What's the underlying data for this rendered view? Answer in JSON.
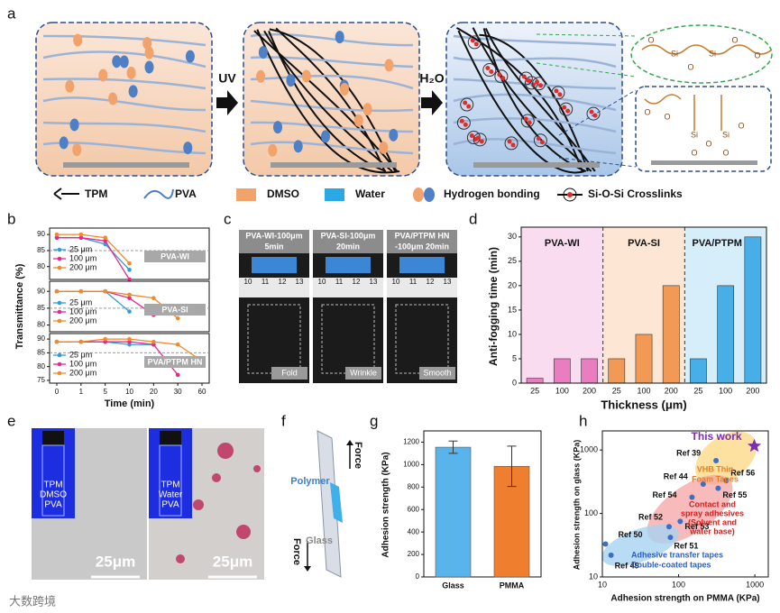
{
  "panel_labels": [
    "a",
    "b",
    "c",
    "d",
    "e",
    "f",
    "g",
    "h"
  ],
  "panel_a": {
    "step1": "UV",
    "step2": "H₂O",
    "legend": [
      "TPM",
      "PVA",
      "DMSO",
      "Water",
      "Hydrogen bonding",
      "Si-O-Si Crosslinks"
    ],
    "atoms_top": [
      "O",
      "Si",
      "O",
      "Si",
      "O",
      "O"
    ],
    "atoms_bottom": [
      "O",
      "O",
      "Si",
      "O",
      "Si",
      "O",
      "O",
      "O"
    ]
  },
  "panel_c": {
    "captions": [
      [
        "PVA-WI-100μm",
        "5min"
      ],
      [
        "PVA-SI-100μm",
        "20min"
      ],
      [
        "PVA/PTPM HN",
        "-100μm  20min"
      ]
    ],
    "modes": [
      "Fold",
      "Wrinkle",
      "Smooth"
    ],
    "ruler": [
      "10",
      "11",
      "12",
      "13"
    ]
  },
  "panel_e": {
    "vials": [
      [
        "TPM",
        "DMSO",
        "PVA"
      ],
      [
        "TPM",
        "Water",
        "PVA"
      ]
    ],
    "scale_bar": "25μm"
  },
  "panel_f": {
    "force_top": "Force",
    "polymer": "Polymer",
    "glass": "Glass",
    "force_bottom": "Force"
  },
  "watermark": "大数跨境",
  "chart_data": [
    {
      "type": "line",
      "ylabel": "Transmittance (%)",
      "annotation": "PVA-WI",
      "threshold": 85,
      "ylim": [
        76,
        92
      ],
      "yticks": [
        80,
        85,
        90
      ],
      "series": [
        {
          "name": "25 μm",
          "color": "#2f9ee0",
          "values": [
            89,
            89,
            87,
            79,
            null,
            null,
            null
          ]
        },
        {
          "name": "100 μm",
          "color": "#e4288f",
          "values": [
            89,
            89,
            88,
            76,
            null,
            null,
            null
          ]
        },
        {
          "name": "200 μm",
          "color": "#f08a2c",
          "values": [
            90,
            90,
            89,
            81,
            null,
            null,
            null
          ]
        }
      ]
    },
    {
      "type": "line",
      "annotation": "PVA-SI",
      "threshold": 85,
      "ylim": [
        78,
        93
      ],
      "yticks": [
        80,
        85,
        90
      ],
      "series": [
        {
          "name": "25 μm",
          "color": "#2f9ee0",
          "values": [
            90,
            90,
            90,
            84,
            null,
            null,
            null
          ]
        },
        {
          "name": "100 μm",
          "color": "#e4288f",
          "values": [
            90,
            90,
            90,
            88,
            83,
            null,
            null
          ]
        },
        {
          "name": "200 μm",
          "color": "#f08a2c",
          "values": [
            90,
            90,
            90,
            89,
            88,
            82,
            null
          ]
        }
      ]
    },
    {
      "type": "line",
      "annotation": "PVA/PTPM HN",
      "threshold": 85,
      "xlabel": "Time (min)",
      "categories": [
        "0",
        "1",
        "5",
        "10",
        "20",
        "30",
        "60"
      ],
      "ylim": [
        74,
        92
      ],
      "yticks": [
        75,
        80,
        85,
        90
      ],
      "series": [
        {
          "name": "25 μm",
          "color": "#2f9ee0",
          "values": [
            89,
            89,
            89,
            88,
            88,
            null,
            null
          ]
        },
        {
          "name": "100 μm",
          "color": "#e4288f",
          "values": [
            89,
            89,
            89,
            89,
            88,
            77,
            null
          ]
        },
        {
          "name": "200 μm",
          "color": "#f08a2c",
          "values": [
            89,
            89,
            90,
            90,
            89,
            88,
            82
          ]
        }
      ]
    },
    {
      "type": "groupbar",
      "ylabel": "Anti-fogging time (min)",
      "xlabel": "Thickness (μm)",
      "categories": [
        "25",
        "100",
        "200"
      ],
      "ylim": [
        0,
        32
      ],
      "yticks": [
        0,
        5,
        10,
        15,
        20,
        25,
        30
      ],
      "series": [
        {
          "name": "PVA-WI",
          "color": "#e97dbf",
          "band_color": "#f9dcf0",
          "values": [
            1,
            5,
            5
          ]
        },
        {
          "name": "PVA-SI",
          "color": "#f29a55",
          "band_color": "#fde6d3",
          "values": [
            5,
            10,
            20
          ]
        },
        {
          "name": "PVA/PTPM HN",
          "color": "#47aee8",
          "band_color": "#d6eefa",
          "values": [
            5,
            20,
            30
          ]
        }
      ]
    },
    {
      "type": "errbar",
      "ylabel": "Adhesion strength (KPa)",
      "categories": [
        "Glass",
        "PMMA"
      ],
      "values": [
        1155,
        985
      ],
      "errors": [
        55,
        180
      ],
      "colors": [
        "#5ab4ec",
        "#ef7e2e"
      ],
      "ylim": [
        0,
        1300
      ],
      "yticks": [
        0,
        200,
        400,
        600,
        800,
        1000,
        1200
      ]
    },
    {
      "type": "scatter",
      "log_x": true,
      "log_y": true,
      "xlabel": "Adhesion strength on PMMA (KPa)",
      "ylabel": "Adhesion strength on glass (KPa)",
      "xlim": [
        10,
        1500
      ],
      "ylim": [
        10,
        2000
      ],
      "xticks": [
        10,
        100,
        1000
      ],
      "yticks": [
        10,
        100,
        1000
      ],
      "series": [
        {
          "name": "This work",
          "color": "#7a2fb5",
          "marker": "star",
          "x": [
            985
          ],
          "values": [
            1155
          ]
        },
        {
          "labels": [
            "Ref 39",
            "Ref 44",
            "Ref 54",
            "Ref 56",
            "Ref 55",
            "Ref 52",
            "Ref 53",
            "Ref 51",
            "Ref 50",
            "Ref 49"
          ],
          "color": "#3b6fc6",
          "marker": "circle",
          "x": [
            310,
            210,
            150,
            420,
            330,
            75,
            105,
            78,
            11,
            13
          ],
          "values": [
            680,
            290,
            180,
            330,
            250,
            62,
            75,
            42,
            33,
            22
          ]
        }
      ],
      "annotations": [
        "VHB Thin",
        "Foam Tapes",
        "Contact and",
        "spray adhesives",
        "(Solvent and",
        "water base)",
        "Adhesive transfer tapes",
        "Double-coated tapes"
      ]
    }
  ]
}
